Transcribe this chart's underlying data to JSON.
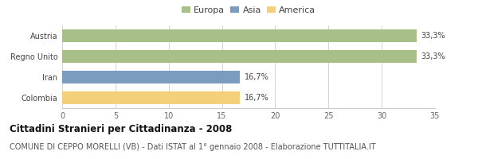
{
  "categories": [
    "Austria",
    "Regno Unito",
    "Iran",
    "Colombia"
  ],
  "values": [
    33.3,
    33.3,
    16.7,
    16.7
  ],
  "colors": [
    "#a8bf8a",
    "#a8bf8a",
    "#7b9bbf",
    "#f5d07a"
  ],
  "labels": [
    "33,3%",
    "33,3%",
    "16,7%",
    "16,7%"
  ],
  "legend": [
    {
      "label": "Europa",
      "color": "#a8bf8a"
    },
    {
      "label": "Asia",
      "color": "#7b9bbf"
    },
    {
      "label": "America",
      "color": "#f5d07a"
    }
  ],
  "xlim": [
    0,
    35
  ],
  "xticks": [
    0,
    5,
    10,
    15,
    20,
    25,
    30,
    35
  ],
  "title": "Cittadini Stranieri per Cittadinanza - 2008",
  "subtitle": "COMUNE DI CEPPO MORELLI (VB) - Dati ISTAT al 1° gennaio 2008 - Elaborazione TUTTITALIA.IT",
  "title_fontsize": 8.5,
  "subtitle_fontsize": 7,
  "label_fontsize": 7,
  "tick_fontsize": 7,
  "legend_fontsize": 8,
  "bar_height": 0.6,
  "background_color": "#ffffff",
  "grid_color": "#cccccc"
}
